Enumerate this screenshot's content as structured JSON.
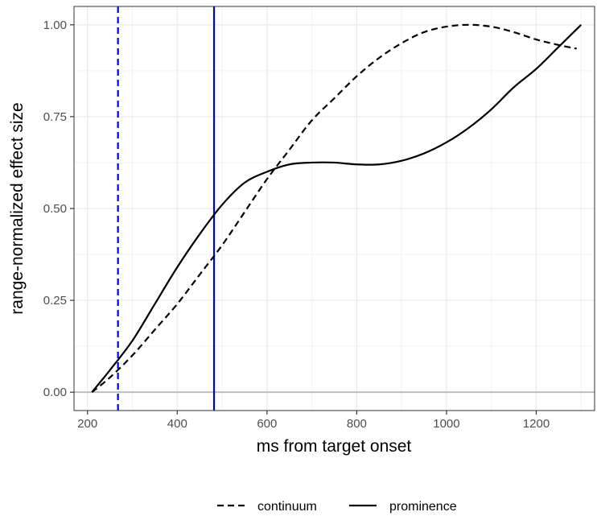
{
  "chart_data": {
    "type": "line",
    "title": "",
    "xlabel": "ms from target onset",
    "ylabel": "range-normalized effect size",
    "xlim": [
      170,
      1330
    ],
    "ylim": [
      -0.05,
      1.05
    ],
    "x_ticks": [
      200,
      400,
      600,
      800,
      1000,
      1200
    ],
    "x_tick_labels": [
      "200",
      "400",
      "600",
      "800",
      "1000",
      "1200"
    ],
    "y_ticks": [
      0,
      0.25,
      0.5,
      0.75,
      1.0
    ],
    "y_tick_labels": [
      "0.00",
      "0.25",
      "0.50",
      "0.75",
      "1.00"
    ],
    "grid": true,
    "legend_position": "bottom",
    "series": [
      {
        "name": "continuum",
        "linetype": "dashed",
        "color": "#000000",
        "x": [
          210,
          250,
          300,
          350,
          400,
          450,
          500,
          550,
          600,
          650,
          700,
          750,
          800,
          850,
          900,
          950,
          1000,
          1050,
          1100,
          1150,
          1200,
          1250,
          1290
        ],
        "y": [
          0.0,
          0.04,
          0.1,
          0.17,
          0.24,
          0.32,
          0.4,
          0.49,
          0.58,
          0.66,
          0.74,
          0.8,
          0.86,
          0.91,
          0.95,
          0.98,
          0.995,
          1.0,
          0.995,
          0.98,
          0.96,
          0.945,
          0.935
        ]
      },
      {
        "name": "prominence",
        "linetype": "solid",
        "color": "#000000",
        "x": [
          210,
          250,
          300,
          350,
          400,
          450,
          500,
          550,
          600,
          650,
          700,
          750,
          800,
          850,
          900,
          950,
          1000,
          1050,
          1100,
          1150,
          1200,
          1250,
          1300
        ],
        "y": [
          0.0,
          0.06,
          0.14,
          0.24,
          0.34,
          0.43,
          0.51,
          0.57,
          0.6,
          0.62,
          0.625,
          0.625,
          0.62,
          0.62,
          0.63,
          0.65,
          0.68,
          0.72,
          0.77,
          0.83,
          0.88,
          0.94,
          1.0
        ]
      }
    ],
    "vlines": [
      {
        "x": 268,
        "color": "#0000dd",
        "linetype": "dashed"
      },
      {
        "x": 482,
        "color": "#0000dd",
        "linetype": "solid"
      }
    ],
    "hline": {
      "y": 0,
      "color": "#bdbdbd"
    }
  }
}
